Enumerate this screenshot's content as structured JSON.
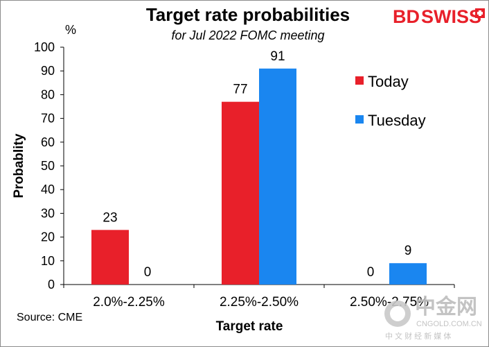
{
  "chart_data": {
    "type": "bar",
    "title": "Target rate probabilities",
    "subtitle": "for Jul 2022 FOMC meeting",
    "unit": "%",
    "xlabel": "Target rate",
    "ylabel": "Probablity",
    "categories": [
      "2.0%-2.25%",
      "2.25%-2.50%",
      "2.50%-2.75%"
    ],
    "series": [
      {
        "name": "Today",
        "color": "#e8202a",
        "values": [
          23,
          77,
          0
        ]
      },
      {
        "name": "Tuesday",
        "color": "#1a86f0",
        "values": [
          0,
          91,
          9
        ]
      }
    ],
    "ylim": [
      0,
      100
    ],
    "yticks": [
      0,
      10,
      20,
      30,
      40,
      50,
      60,
      70,
      80,
      90,
      100
    ],
    "grid": false,
    "legend": "right"
  },
  "source": "Source: CME",
  "brand": {
    "bd": "BD",
    "swiss": "SWISS",
    "color": "#e8202a"
  },
  "watermark": {
    "name": "中金网",
    "domain": "CNGOLD.COM.CN",
    "tagline": "中 文 财 经 新 媒 体"
  }
}
